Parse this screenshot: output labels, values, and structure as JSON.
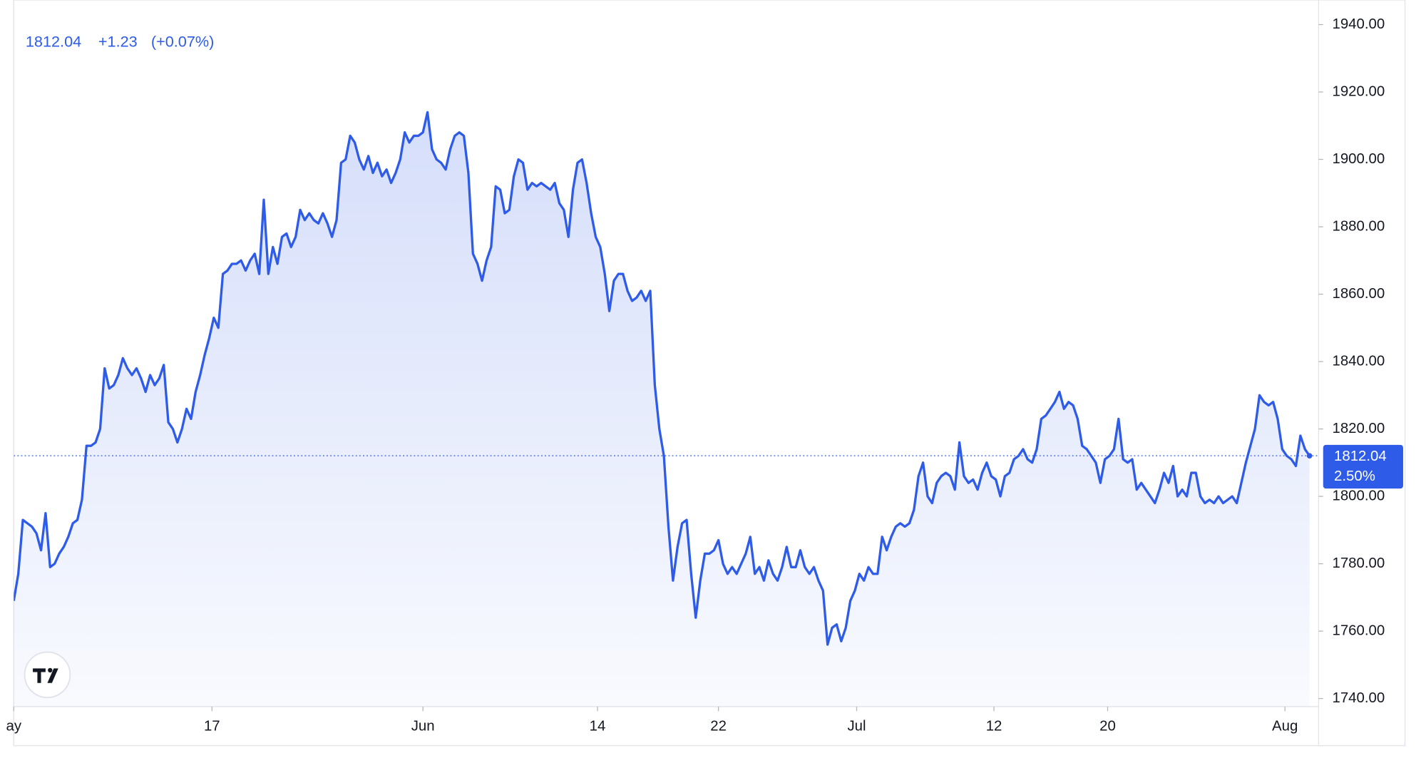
{
  "chart_data": {
    "type": "area",
    "price_label": "1812.04",
    "change": "+1.23",
    "change_pct": "(+0.07%)",
    "tag_change": "2.50%",
    "color": "#2e5be8",
    "values": [
      1769,
      1777,
      1793,
      1792,
      1791,
      1789,
      1784,
      1795,
      1779,
      1780,
      1783,
      1785,
      1788,
      1792,
      1793,
      1799,
      1815,
      1815,
      1816,
      1820,
      1838,
      1832,
      1833,
      1836,
      1841,
      1838,
      1836,
      1838,
      1835,
      1831,
      1836,
      1833,
      1835,
      1839,
      1822,
      1820,
      1816,
      1820,
      1826,
      1823,
      1831,
      1836,
      1842,
      1847,
      1853,
      1850,
      1866,
      1867,
      1869,
      1869,
      1870,
      1867,
      1870,
      1872,
      1866,
      1888,
      1866,
      1874,
      1869,
      1877,
      1878,
      1874,
      1877,
      1885,
      1882,
      1884,
      1882,
      1881,
      1884,
      1881,
      1877,
      1882,
      1899,
      1900,
      1907,
      1905,
      1900,
      1897,
      1901,
      1896,
      1899,
      1895,
      1897,
      1893,
      1896,
      1900,
      1908,
      1905,
      1907,
      1907,
      1908,
      1914,
      1903,
      1900,
      1899,
      1897,
      1903,
      1907,
      1908,
      1907,
      1896,
      1872,
      1869,
      1864,
      1870,
      1874,
      1892,
      1891,
      1884,
      1885,
      1895,
      1900,
      1899,
      1891,
      1893,
      1892,
      1893,
      1892,
      1891,
      1893,
      1887,
      1885,
      1877,
      1891,
      1899,
      1900,
      1893,
      1884,
      1877,
      1874,
      1866,
      1855,
      1864,
      1866,
      1866,
      1861,
      1858,
      1859,
      1861,
      1858,
      1861,
      1833,
      1820,
      1812,
      1791,
      1775,
      1785,
      1792,
      1793,
      1777,
      1764,
      1775,
      1783,
      1783,
      1784,
      1787,
      1780,
      1777,
      1779,
      1777,
      1780,
      1783,
      1788,
      1777,
      1779,
      1775,
      1781,
      1777,
      1775,
      1779,
      1785,
      1779,
      1779,
      1784,
      1779,
      1777,
      1779,
      1775,
      1772,
      1756,
      1761,
      1762,
      1757,
      1761,
      1769,
      1772,
      1777,
      1775,
      1779,
      1777,
      1777,
      1788,
      1784,
      1788,
      1791,
      1792,
      1791,
      1792,
      1796,
      1806,
      1810,
      1800,
      1798,
      1804,
      1806,
      1807,
      1806,
      1802,
      1816,
      1806,
      1804,
      1805,
      1802,
      1807,
      1810,
      1806,
      1805,
      1800,
      1806,
      1807,
      1811,
      1812,
      1814,
      1811,
      1810,
      1814,
      1823,
      1824,
      1826,
      1828,
      1831,
      1826,
      1828,
      1827,
      1823,
      1815,
      1814,
      1812,
      1810,
      1804,
      1811,
      1812,
      1814,
      1823,
      1811,
      1810,
      1811,
      1802,
      1804,
      1802,
      1800,
      1798,
      1802,
      1807,
      1804,
      1809,
      1800,
      1802,
      1800,
      1807,
      1807,
      1800,
      1798,
      1799,
      1798,
      1800,
      1798,
      1799,
      1800,
      1798,
      1804,
      1810,
      1815,
      1820,
      1830,
      1828,
      1827,
      1828,
      1823,
      1814,
      1812,
      1811,
      1809,
      1818,
      1814,
      1812.04
    ],
    "xlim": [
      0,
      287
    ],
    "xticks": [
      {
        "value": 0,
        "label": "ay"
      },
      {
        "value": 43.6,
        "label": "17"
      },
      {
        "value": 90,
        "label": "Jun"
      },
      {
        "value": 128.4,
        "label": "14"
      },
      {
        "value": 155,
        "label": "22"
      },
      {
        "value": 185.4,
        "label": "Jul"
      },
      {
        "value": 215.6,
        "label": "12"
      },
      {
        "value": 240.6,
        "label": "20"
      },
      {
        "value": 279.6,
        "label": "Aug"
      }
    ],
    "ylim": [
      1737.6,
      1947.3
    ],
    "yticks": [
      {
        "value": 1740,
        "label": "1740.00"
      },
      {
        "value": 1760,
        "label": "1760.00"
      },
      {
        "value": 1780,
        "label": "1780.00"
      },
      {
        "value": 1800,
        "label": "1800.00"
      },
      {
        "value": 1820,
        "label": "1820.00"
      },
      {
        "value": 1840,
        "label": "1840.00"
      },
      {
        "value": 1860,
        "label": "1860.00"
      },
      {
        "value": 1880,
        "label": "1880.00"
      },
      {
        "value": 1900,
        "label": "1900.00"
      },
      {
        "value": 1920,
        "label": "1920.00"
      },
      {
        "value": 1940,
        "label": "1940.00"
      }
    ]
  }
}
